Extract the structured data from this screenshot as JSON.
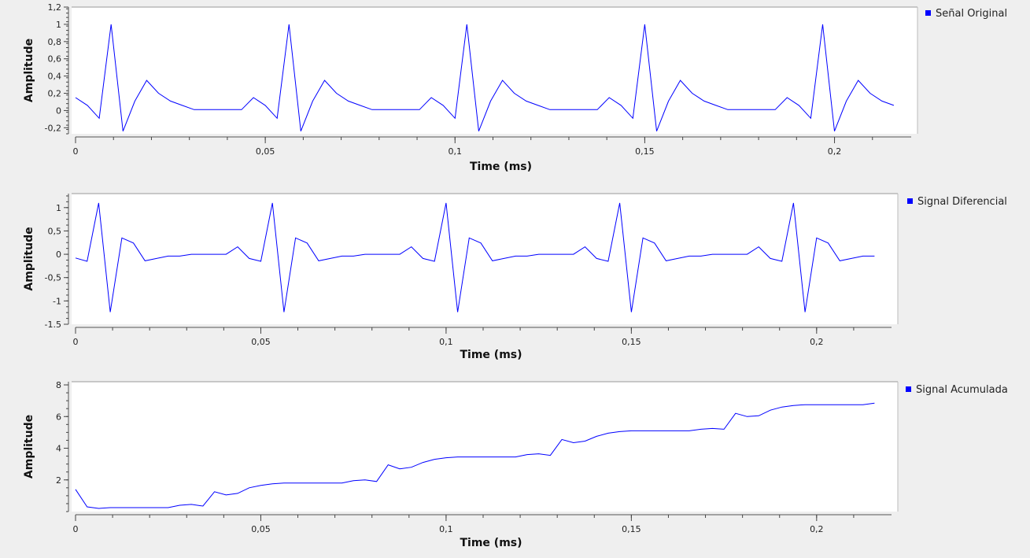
{
  "chart_data": [
    {
      "type": "line",
      "xlabel": "Time (ms)",
      "ylabel": "Amplitude",
      "xlim": [
        0,
        0.22
      ],
      "ylim": [
        -0.27,
        1.2
      ],
      "xticks": [
        0,
        0.05,
        0.1,
        0.15,
        0.2
      ],
      "xtick_labels": [
        "0",
        "0,05",
        "0,1",
        "0,15",
        "0,2"
      ],
      "yticks": [
        -0.2,
        0,
        0.2,
        0.4,
        0.6,
        0.8,
        1,
        1.2
      ],
      "ytick_labels": [
        "-0,2",
        "0",
        "0,2",
        "0,4",
        "0,6",
        "0,8",
        "1",
        "1,2"
      ],
      "grid": false,
      "legend_position": "top-right",
      "series": [
        {
          "name": "Señal Original",
          "color": "#0000ff",
          "x": [
            0,
            0.003125,
            0.00625,
            0.009375,
            0.0125,
            0.015625,
            0.01875,
            0.021875,
            0.025,
            0.028125,
            0.03125,
            0.034375,
            0.0375,
            0.040625,
            0.04375,
            0.046875,
            0.05,
            0.053125,
            0.05625,
            0.059375,
            0.0625,
            0.065625,
            0.06875,
            0.071875,
            0.075,
            0.078125,
            0.08125,
            0.084375,
            0.0875,
            0.090625,
            0.09375,
            0.096875,
            0.1,
            0.103125,
            0.10625,
            0.109375,
            0.1125,
            0.115625,
            0.11875,
            0.121875,
            0.125,
            0.128125,
            0.13125,
            0.134375,
            0.1375,
            0.140625,
            0.14375,
            0.146875,
            0.15,
            0.153125,
            0.15625,
            0.159375,
            0.1625,
            0.165625,
            0.16875,
            0.171875,
            0.175,
            0.178125,
            0.18125,
            0.184375,
            0.1875,
            0.190625,
            0.19375,
            0.196875,
            0.2,
            0.203125,
            0.20625,
            0.209375,
            0.2125,
            0.215625
          ],
          "y": [
            0.15,
            0.06,
            -0.09,
            1.0,
            -0.24,
            0.11,
            0.35,
            0.2,
            0.11,
            0.06,
            0.01,
            0.01,
            0.01,
            0.01,
            0.01,
            0.15,
            0.06,
            -0.09,
            1.0,
            -0.24,
            0.11,
            0.35,
            0.2,
            0.11,
            0.06,
            0.01,
            0.01,
            0.01,
            0.01,
            0.01,
            0.15,
            0.06,
            -0.09,
            1.0,
            -0.24,
            0.11,
            0.35,
            0.2,
            0.11,
            0.06,
            0.01,
            0.01,
            0.01,
            0.01,
            0.01,
            0.15,
            0.06,
            -0.09,
            1.0,
            -0.24,
            0.11,
            0.35,
            0.2,
            0.11,
            0.06,
            0.01,
            0.01,
            0.01,
            0.01,
            0.01,
            0.15,
            0.06,
            -0.09,
            1.0,
            -0.24,
            0.11,
            0.35,
            0.2,
            0.11,
            0.06
          ]
        }
      ]
    },
    {
      "type": "line",
      "xlabel": "Time (ms)",
      "ylabel": "Amplitude",
      "xlim": [
        0,
        0.22
      ],
      "ylim": [
        -1.5,
        1.3
      ],
      "xticks": [
        0,
        0.05,
        0.1,
        0.15,
        0.2
      ],
      "xtick_labels": [
        "0",
        "0,05",
        "0,1",
        "0,15",
        "0,2"
      ],
      "yticks": [
        -1.5,
        -1,
        -0.5,
        0,
        0.5,
        1
      ],
      "ytick_labels": [
        "-1.5",
        "-1",
        "-0,5",
        "0",
        "0,5",
        "1"
      ],
      "grid": false,
      "legend_position": "top-right",
      "series": [
        {
          "name": "Signal Diferencial",
          "color": "#0000ff",
          "x": [
            0,
            0.003125,
            0.00625,
            0.009375,
            0.0125,
            0.015625,
            0.01875,
            0.021875,
            0.025,
            0.028125,
            0.03125,
            0.034375,
            0.0375,
            0.040625,
            0.04375,
            0.046875,
            0.05,
            0.053125,
            0.05625,
            0.059375,
            0.0625,
            0.065625,
            0.06875,
            0.071875,
            0.075,
            0.078125,
            0.08125,
            0.084375,
            0.0875,
            0.090625,
            0.09375,
            0.096875,
            0.1,
            0.103125,
            0.10625,
            0.109375,
            0.1125,
            0.115625,
            0.11875,
            0.121875,
            0.125,
            0.128125,
            0.13125,
            0.134375,
            0.1375,
            0.140625,
            0.14375,
            0.146875,
            0.15,
            0.153125,
            0.15625,
            0.159375,
            0.1625,
            0.165625,
            0.16875,
            0.171875,
            0.175,
            0.178125,
            0.18125,
            0.184375,
            0.1875,
            0.190625,
            0.19375,
            0.196875,
            0.2,
            0.203125,
            0.20625,
            0.209375,
            0.2125,
            0.215625
          ],
          "y": [
            -0.08,
            -0.15,
            1.1,
            -1.24,
            0.35,
            0.24,
            -0.14,
            -0.09,
            -0.04,
            -0.04,
            0.0,
            0.0,
            0.0,
            0.0,
            0.16,
            -0.09,
            -0.15,
            1.1,
            -1.24,
            0.35,
            0.24,
            -0.14,
            -0.09,
            -0.04,
            -0.04,
            0.0,
            0.0,
            0.0,
            0.0,
            0.16,
            -0.09,
            -0.15,
            1.1,
            -1.24,
            0.35,
            0.24,
            -0.14,
            -0.09,
            -0.04,
            -0.04,
            0.0,
            0.0,
            0.0,
            0.0,
            0.16,
            -0.09,
            -0.15,
            1.1,
            -1.24,
            0.35,
            0.24,
            -0.14,
            -0.09,
            -0.04,
            -0.04,
            0.0,
            0.0,
            0.0,
            0.0,
            0.16,
            -0.09,
            -0.15,
            1.1,
            -1.24,
            0.35,
            0.24,
            -0.14,
            -0.09,
            -0.04,
            -0.04
          ]
        }
      ]
    },
    {
      "type": "line",
      "xlabel": "Time (ms)",
      "ylabel": "Amplitude",
      "xlim": [
        0,
        0.22
      ],
      "ylim": [
        0,
        8.2
      ],
      "xticks": [
        0,
        0.05,
        0.1,
        0.15,
        0.2
      ],
      "xtick_labels": [
        "0",
        "0,05",
        "0,1",
        "0,15",
        "0,2"
      ],
      "yticks": [
        2,
        4,
        6,
        8
      ],
      "ytick_labels": [
        "2",
        "4",
        "6",
        "8"
      ],
      "grid": false,
      "legend_position": "top-right",
      "series": [
        {
          "name": "Signal Acumulada",
          "color": "#0000ff",
          "x": [
            0,
            0.003125,
            0.00625,
            0.009375,
            0.0125,
            0.015625,
            0.01875,
            0.021875,
            0.025,
            0.028125,
            0.03125,
            0.034375,
            0.0375,
            0.040625,
            0.04375,
            0.046875,
            0.05,
            0.053125,
            0.05625,
            0.059375,
            0.0625,
            0.065625,
            0.06875,
            0.071875,
            0.075,
            0.078125,
            0.08125,
            0.084375,
            0.0875,
            0.090625,
            0.09375,
            0.096875,
            0.1,
            0.103125,
            0.10625,
            0.109375,
            0.1125,
            0.115625,
            0.11875,
            0.121875,
            0.125,
            0.128125,
            0.13125,
            0.134375,
            0.1375,
            0.140625,
            0.14375,
            0.146875,
            0.15,
            0.153125,
            0.15625,
            0.159375,
            0.1625,
            0.165625,
            0.16875,
            0.171875,
            0.175,
            0.178125,
            0.18125,
            0.184375,
            0.1875,
            0.190625,
            0.19375,
            0.196875,
            0.2,
            0.203125,
            0.20625,
            0.209375,
            0.2125,
            0.215625
          ],
          "y": [
            1.4,
            0.3,
            0.2,
            0.25,
            0.25,
            0.25,
            0.25,
            0.25,
            0.25,
            0.4,
            0.45,
            0.35,
            1.25,
            1.05,
            1.15,
            1.5,
            1.65,
            1.75,
            1.8,
            1.8,
            1.8,
            1.8,
            1.8,
            1.8,
            1.95,
            2.0,
            1.9,
            2.95,
            2.7,
            2.8,
            3.1,
            3.3,
            3.4,
            3.45,
            3.45,
            3.45,
            3.45,
            3.45,
            3.45,
            3.6,
            3.65,
            3.55,
            4.55,
            4.35,
            4.45,
            4.75,
            4.95,
            5.05,
            5.1,
            5.1,
            5.1,
            5.1,
            5.1,
            5.1,
            5.2,
            5.25,
            5.2,
            6.2,
            6.0,
            6.05,
            6.4,
            6.6,
            6.7,
            6.75,
            6.75,
            6.75,
            6.75,
            6.75,
            6.75,
            6.85
          ]
        }
      ]
    }
  ]
}
